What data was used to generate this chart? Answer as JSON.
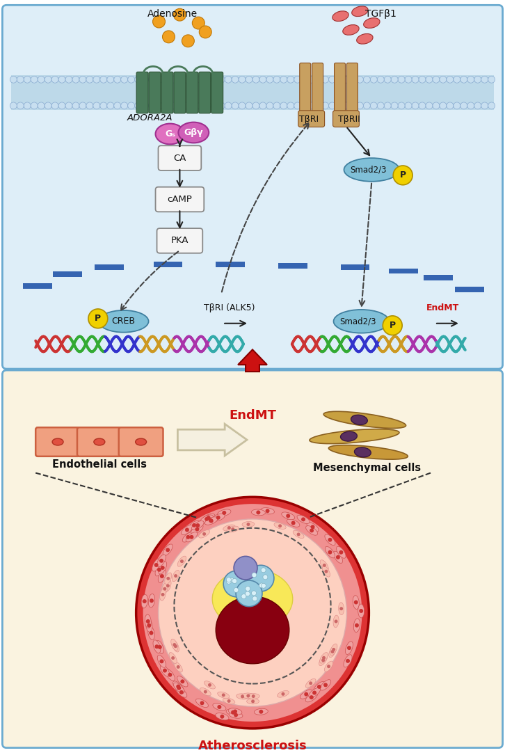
{
  "fig_width": 7.26,
  "fig_height": 10.85,
  "bg_outer": "#ffffff",
  "panel1_bg": "#deeef8",
  "panel2_bg": "#faf3e0",
  "panel1_border": "#6aaad0",
  "panel2_border": "#6aaad0",
  "membrane_color": "#a8cce0",
  "membrane_dot_color": "#b8d8f0",
  "receptor_green": "#4a7a5a",
  "receptor_tan": "#c8a060",
  "gs_color": "#e070c0",
  "gby_color": "#d060b8",
  "adenosine_color": "#f0a020",
  "tgfb1_color": "#e87070",
  "smad_color": "#80c0d8",
  "p_color": "#f0d000",
  "creb_color": "#80c0d8",
  "arrow_color": "#222222",
  "dashed_color": "#444444",
  "blue_dash_color": "#2255aa",
  "red_arrow_color": "#cc1111",
  "endmt_color": "#cc1111",
  "endothelial_fill": "#f0a080",
  "endothelial_border": "#cc6040",
  "meso_body": "#c8a050",
  "meso_nucleus": "#5a3060",
  "vessel_outer_ring": "#cc2222",
  "vessel_wall_pink": "#f09090",
  "vessel_wall_light": "#fcc0b0",
  "vessel_intima": "#fde0c0",
  "vessel_yellow": "#f8e060",
  "blood_dark": "#880010",
  "foam_blue": "#90c8e0",
  "texts": {
    "adenosine": "Adenosine",
    "tgfb1": "TGFβ1",
    "adora2a": "ADORA2A",
    "tbri": "TβRI",
    "tbrii": "TβRII",
    "gs": "Gₛ",
    "gby": "Gβγ",
    "ca": "CA",
    "camp": "cAMP",
    "pka": "PKA",
    "smad23": "Smad2/3",
    "creb": "CREB",
    "tbri_alk5": "TβRI (ALK5)",
    "endmt_right": "EndMT",
    "endmt_label": "EndMT",
    "endothelial": "Endothelial cells",
    "mesenchymal": "Mesenchymal cells",
    "atherosclerosis": "Atherosclerosis"
  }
}
